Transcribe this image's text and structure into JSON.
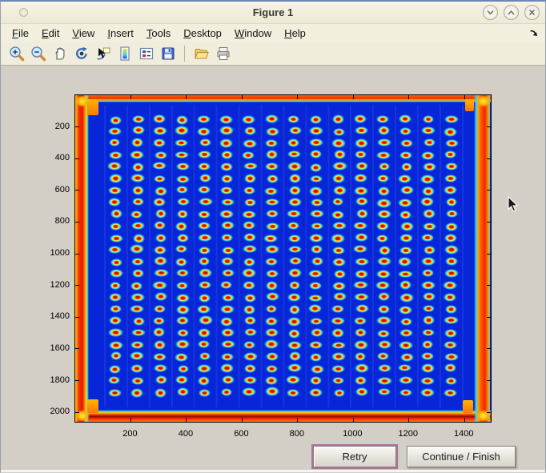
{
  "window": {
    "title": "Figure 1",
    "controls": [
      {
        "name": "shade",
        "glyph": "chevron-down"
      },
      {
        "name": "maximize",
        "glyph": "chevron-up"
      },
      {
        "name": "close",
        "glyph": "x"
      }
    ]
  },
  "menu": {
    "items": [
      {
        "label": "File"
      },
      {
        "label": "Edit"
      },
      {
        "label": "View"
      },
      {
        "label": "Insert"
      },
      {
        "label": "Tools"
      },
      {
        "label": "Desktop"
      },
      {
        "label": "Window"
      },
      {
        "label": "Help"
      }
    ],
    "dock_arrow": "curved-arrow-down-right"
  },
  "toolbar": {
    "buttons": [
      {
        "name": "zoom-in"
      },
      {
        "name": "zoom-out"
      },
      {
        "name": "pan"
      },
      {
        "name": "rotate-3d"
      },
      {
        "name": "data-cursor"
      },
      {
        "name": "colorbar"
      },
      {
        "name": "legend"
      },
      {
        "name": "save"
      },
      {
        "name": "open"
      },
      {
        "name": "print"
      }
    ]
  },
  "dialog": {
    "retry_label": "Retry",
    "continue_label": "Continue / Finish"
  },
  "chart_data": {
    "type": "heatmap",
    "title": "",
    "xlabel": "",
    "ylabel": "",
    "colormap": "jet",
    "description": "Jet-colormap thermal image of a 384-well microplate: 24 rows x 16 columns of hot wells (red cores, yellow rings, cyan halos) on a cold deep-blue plate body; plate edges glow red/orange/yellow with bright corners.",
    "x_ticks": [
      200,
      400,
      600,
      800,
      1000,
      1200,
      1400
    ],
    "y_ticks": [
      200,
      400,
      600,
      800,
      1000,
      1200,
      1400,
      1600,
      1800,
      2000
    ],
    "x_range": [
      0,
      1500
    ],
    "y_range": [
      0,
      2070
    ],
    "y_axis_direction": "reversed (image coordinates, y increases downward)",
    "grid": {
      "rows": 24,
      "cols": 16,
      "well_count": 384
    },
    "colors": {
      "background": "#0726d8",
      "well_center": "#c61208",
      "well_ring": "#ffd400",
      "well_halo": "#45e2ea",
      "edge_hot": "#f32500",
      "edge_warm": "#ff8800",
      "edge_yellow": "#ffd000"
    }
  },
  "cursor": {
    "type": "arrow",
    "visible": true
  }
}
